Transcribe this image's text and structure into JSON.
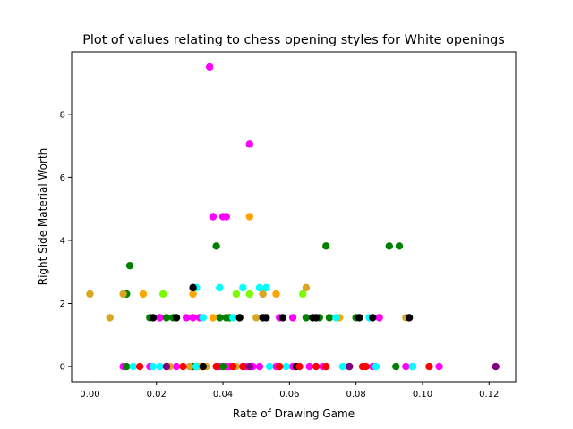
{
  "chart_data": {
    "type": "scatter",
    "title": "Plot of values relating to chess opening styles for White openings",
    "xlabel": "Rate of Drawing Game",
    "ylabel": "Right Side Material Worth",
    "xlim": [
      -0.0055,
      0.128
    ],
    "ylim": [
      -0.48,
      9.98
    ],
    "xticks": [
      0.0,
      0.02,
      0.04,
      0.06,
      0.08,
      0.1,
      0.12
    ],
    "xtick_labels": [
      "0.00",
      "0.02",
      "0.04",
      "0.06",
      "0.08",
      "0.10",
      "0.12"
    ],
    "yticks": [
      0,
      2,
      4,
      6,
      8
    ],
    "ytick_labels": [
      "0",
      "2",
      "4",
      "6",
      "8"
    ],
    "grid": false,
    "colors": {
      "magenta": "#ff00ff",
      "green": "#008000",
      "orange": "#ffa500",
      "goldenrod": "#daa520",
      "cyan": "#00ffff",
      "black": "#000000",
      "red": "#ff0000",
      "purple": "#800080",
      "lawngreen": "#7cfc00"
    },
    "series": [
      {
        "color": "#ff00ff",
        "points": [
          [
            0.036,
            9.5
          ],
          [
            0.048,
            7.05
          ],
          [
            0.037,
            4.75
          ],
          [
            0.04,
            4.75
          ],
          [
            0.041,
            4.75
          ],
          [
            0.021,
            1.55
          ],
          [
            0.029,
            1.55
          ],
          [
            0.031,
            1.55
          ],
          [
            0.033,
            1.55
          ],
          [
            0.057,
            1.55
          ],
          [
            0.061,
            1.55
          ],
          [
            0.087,
            1.55
          ],
          [
            0.01,
            0.0
          ],
          [
            0.018,
            0.0
          ],
          [
            0.024,
            0.0
          ],
          [
            0.026,
            0.0
          ],
          [
            0.03,
            0.0
          ],
          [
            0.034,
            0.0
          ],
          [
            0.039,
            0.0
          ],
          [
            0.041,
            0.0
          ],
          [
            0.042,
            0.0
          ],
          [
            0.047,
            0.0
          ],
          [
            0.049,
            0.0
          ],
          [
            0.051,
            0.0
          ],
          [
            0.056,
            0.0
          ],
          [
            0.061,
            0.0
          ],
          [
            0.066,
            0.0
          ],
          [
            0.07,
            0.0
          ],
          [
            0.085,
            0.0
          ],
          [
            0.095,
            0.0
          ],
          [
            0.097,
            0.0
          ],
          [
            0.105,
            0.0
          ]
        ]
      },
      {
        "color": "#008000",
        "points": [
          [
            0.038,
            3.82
          ],
          [
            0.071,
            3.82
          ],
          [
            0.09,
            3.82
          ],
          [
            0.093,
            3.82
          ],
          [
            0.012,
            3.2
          ],
          [
            0.011,
            2.3
          ],
          [
            0.018,
            1.55
          ],
          [
            0.023,
            1.55
          ],
          [
            0.025,
            1.55
          ],
          [
            0.039,
            1.55
          ],
          [
            0.041,
            1.55
          ],
          [
            0.042,
            1.55
          ],
          [
            0.065,
            1.55
          ],
          [
            0.069,
            1.55
          ],
          [
            0.072,
            1.55
          ],
          [
            0.08,
            1.55
          ],
          [
            0.011,
            0.0
          ],
          [
            0.023,
            0.0
          ],
          [
            0.031,
            0.0
          ],
          [
            0.04,
            0.0
          ],
          [
            0.086,
            0.0
          ],
          [
            0.092,
            0.0
          ]
        ]
      },
      {
        "color": "#ffa500",
        "points": [
          [
            0.048,
            4.75
          ],
          [
            0.016,
            2.3
          ],
          [
            0.031,
            2.3
          ],
          [
            0.056,
            2.3
          ],
          [
            0.037,
            1.55
          ],
          [
            0.075,
            1.55
          ],
          [
            0.033,
            0.0
          ]
        ]
      },
      {
        "color": "#daa520",
        "points": [
          [
            0.0,
            2.3
          ],
          [
            0.01,
            2.3
          ],
          [
            0.052,
            2.3
          ],
          [
            0.065,
            2.5
          ],
          [
            0.006,
            1.55
          ],
          [
            0.045,
            1.55
          ],
          [
            0.05,
            1.55
          ],
          [
            0.095,
            1.55
          ],
          [
            0.024,
            0.0
          ],
          [
            0.03,
            0.0
          ],
          [
            0.035,
            0.0
          ],
          [
            0.044,
            0.0
          ]
        ]
      },
      {
        "color": "#00ffff",
        "points": [
          [
            0.031,
            2.5
          ],
          [
            0.032,
            2.5
          ],
          [
            0.039,
            2.5
          ],
          [
            0.046,
            2.5
          ],
          [
            0.051,
            2.5
          ],
          [
            0.053,
            2.5
          ],
          [
            0.034,
            1.55
          ],
          [
            0.043,
            1.55
          ],
          [
            0.074,
            1.55
          ],
          [
            0.084,
            1.55
          ],
          [
            0.013,
            0.0
          ],
          [
            0.019,
            0.0
          ],
          [
            0.021,
            0.0
          ],
          [
            0.032,
            0.0
          ],
          [
            0.054,
            0.0
          ],
          [
            0.059,
            0.0
          ],
          [
            0.076,
            0.0
          ],
          [
            0.086,
            0.0
          ],
          [
            0.097,
            0.0
          ]
        ]
      },
      {
        "color": "#000000",
        "points": [
          [
            0.031,
            2.5
          ],
          [
            0.019,
            1.55
          ],
          [
            0.026,
            1.55
          ],
          [
            0.045,
            1.55
          ],
          [
            0.052,
            1.55
          ],
          [
            0.053,
            1.55
          ],
          [
            0.058,
            1.55
          ],
          [
            0.067,
            1.55
          ],
          [
            0.068,
            1.55
          ],
          [
            0.081,
            1.55
          ],
          [
            0.085,
            1.55
          ],
          [
            0.096,
            1.55
          ],
          [
            0.034,
            0.0
          ],
          [
            0.062,
            0.0
          ],
          [
            0.078,
            0.0
          ]
        ]
      },
      {
        "color": "#ff0000",
        "points": [
          [
            0.015,
            0.0
          ],
          [
            0.028,
            0.0
          ],
          [
            0.038,
            0.0
          ],
          [
            0.043,
            0.0
          ],
          [
            0.046,
            0.0
          ],
          [
            0.057,
            0.0
          ],
          [
            0.063,
            0.0
          ],
          [
            0.068,
            0.0
          ],
          [
            0.071,
            0.0
          ],
          [
            0.082,
            0.0
          ],
          [
            0.083,
            0.0
          ],
          [
            0.102,
            0.0
          ]
        ]
      },
      {
        "color": "#800080",
        "points": [
          [
            0.023,
            0.0
          ],
          [
            0.048,
            0.0
          ],
          [
            0.078,
            0.0
          ],
          [
            0.122,
            0.0
          ]
        ]
      },
      {
        "color": "#7cfc00",
        "points": [
          [
            0.022,
            2.3
          ],
          [
            0.044,
            2.3
          ],
          [
            0.048,
            2.3
          ],
          [
            0.064,
            2.3
          ]
        ]
      }
    ]
  }
}
